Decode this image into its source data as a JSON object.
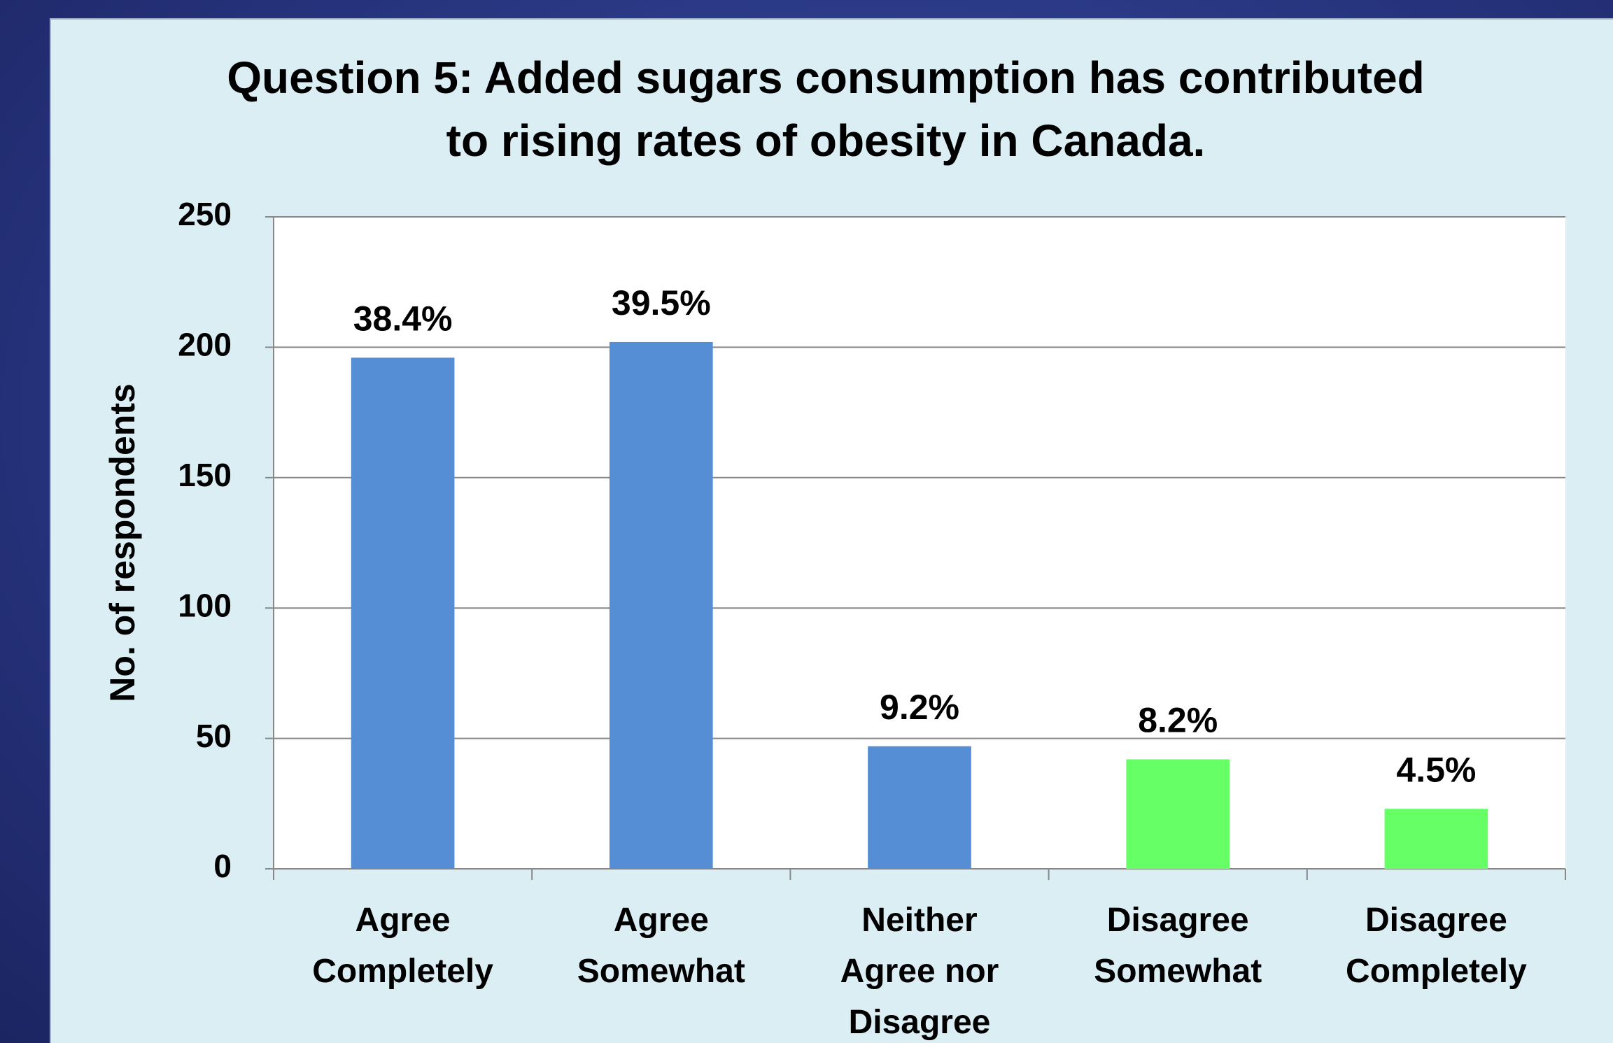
{
  "chart_data": {
    "type": "bar",
    "title": "Question 5:  Added sugars consumption has contributed to rising rates of obesity in Canada.",
    "y_label": "No. of respondents",
    "categories": [
      "Agree Completely",
      "Agree Somewhat",
      "Neither Agree nor Disagree",
      "Disagree Somewhat",
      "Disagree Completely"
    ],
    "values": [
      196,
      202,
      47,
      42,
      23
    ],
    "annotations": [
      "38.4%",
      "39.5%",
      "9.2%",
      "8.2%",
      "4.5%"
    ],
    "colors": [
      "#558ed5",
      "#558ed5",
      "#558ed5",
      "#66ff66",
      "#66ff66"
    ],
    "ylim": [
      0,
      250
    ],
    "yticks": [
      0,
      50,
      100,
      150,
      200,
      250
    ],
    "grid": true
  }
}
